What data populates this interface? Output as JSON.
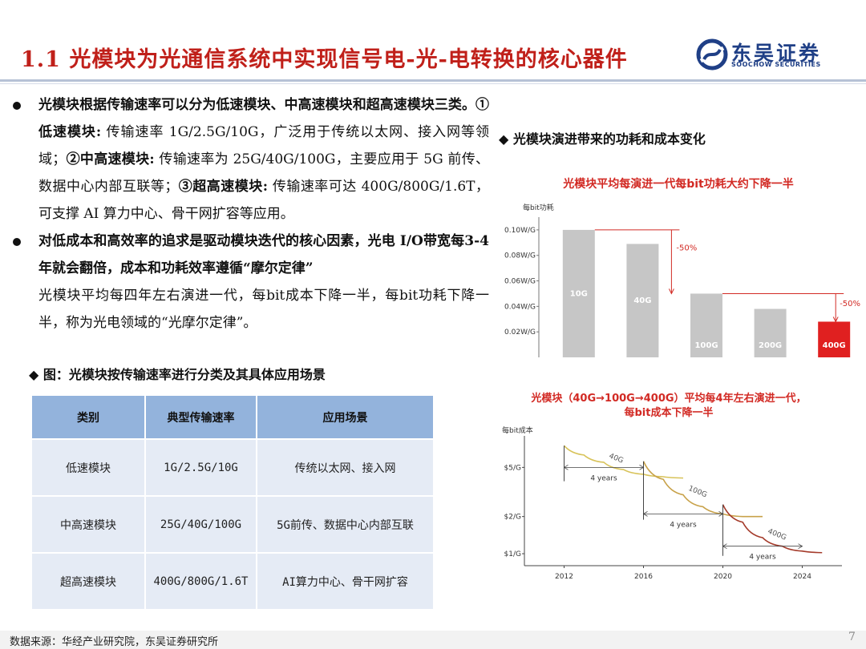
{
  "header": {
    "title": "1.1 光模块为光通信系统中实现信号电-光-电转换的核心器件",
    "logo_cn": "东吴证券",
    "logo_en": "SOOCHOW SECURITIES",
    "brand_color": "#1f3f86",
    "title_color": "#c0201a"
  },
  "bullets": [
    {
      "t1": "光模块根据传输速率可以分为低速模块、中高速模块和超高速模块三类。",
      "t2": "①低速模块:",
      "t3": " 传输速率 1G/2.5G/10G，广泛用于传统以太网、接入网等领域；",
      "t4": "②中高速模块:",
      "t5": " 传输速率为 25G/40G/100G，主要应用于 5G 前传、数据中心内部互联等；",
      "t6": "③超高速模块:",
      "t7": " 传输速率可达 400G/800G/1.6T，可支撑 AI 算力中心、骨干网扩容等应用。"
    },
    {
      "t1": "对低成本和高效率的追求是驱动模块迭代的核心因素，光电 I/O带宽每3-4年就会翻倍，成本和功耗效率遵循“摩尔定律”",
      "t2": "光模块平均每四年左右演进一代，每bit成本下降一半，每bit功耗下降一半，称为光电领域的“光摩尔定律”。"
    }
  ],
  "table": {
    "caption": "◆ 图：光模块按传输速率进行分类及其具体应用场景",
    "headers": [
      "类别",
      "典型传输速率",
      "应用场景"
    ],
    "rows": [
      [
        "低速模块",
        "1G/2.5G/10G",
        "传统以太网、接入网"
      ],
      [
        "中高速模块",
        "25G/40G/100G",
        "5G前传、数据中心内部互联"
      ],
      [
        "超高速模块",
        "400G/800G/1.6T",
        "AI算力中心、骨干网扩容"
      ]
    ]
  },
  "right_caption": "◆ 光模块演进带来的功耗和成本变化",
  "chart_data": [
    {
      "type": "bar",
      "title": "光模块平均每演进一代每bit功耗大约下降一半",
      "ylabel": "每bit功耗",
      "ylim": [
        0,
        0.11
      ],
      "yticks": [
        "0.02W/G",
        "0.04W/G",
        "0.06W/G",
        "0.08W/G",
        "0.10W/G"
      ],
      "ytick_values": [
        0.02,
        0.04,
        0.06,
        0.08,
        0.1
      ],
      "categories": [
        "10G",
        "40G",
        "100G",
        "200G",
        "400G"
      ],
      "values": [
        0.1,
        0.089,
        0.05,
        0.038,
        0.028
      ],
      "colors": [
        "#c6c6c6",
        "#c6c6c6",
        "#c6c6c6",
        "#c6c6c6",
        "#e02020"
      ],
      "annotations": [
        "-50%",
        "-50%"
      ],
      "grid": false
    },
    {
      "type": "line",
      "title_l1": "光模块（40G→100G→400G）平均每4年左右演进一代，",
      "title_l2": "每bit成本下降一半",
      "ylabel": "每bit成本",
      "xlim": [
        2010,
        2026
      ],
      "xticks": [
        "2012",
        "2016",
        "2020",
        "2024"
      ],
      "xtick_values": [
        2012,
        2016,
        2020,
        2024
      ],
      "yticks": [
        "$5/G",
        "$2/G",
        "$1/G"
      ],
      "ytick_values": [
        5,
        2,
        1
      ],
      "series": [
        {
          "name": "40G",
          "x": [
            2012,
            2013,
            2014,
            2015,
            2016,
            2017,
            2018
          ],
          "y": [
            7.5,
            6.3,
            5.5,
            4.8,
            4.4,
            4.2,
            4.1
          ]
        },
        {
          "name": "100G",
          "x": [
            2016,
            2017,
            2018,
            2019,
            2020,
            2021,
            2022
          ],
          "y": [
            5.6,
            4.0,
            3.0,
            2.4,
            2.1,
            2.0,
            2.0
          ]
        },
        {
          "name": "400G",
          "x": [
            2020,
            2021,
            2022,
            2023,
            2024,
            2025
          ],
          "y": [
            2.5,
            1.8,
            1.35,
            1.15,
            1.05,
            1.02
          ]
        }
      ],
      "annotations": [
        "4 years",
        "4 years",
        "4 years"
      ],
      "grid": false
    }
  ],
  "footer": {
    "source": "数据来源：华经产业研究院，东吴证券研究所",
    "page": "7"
  }
}
